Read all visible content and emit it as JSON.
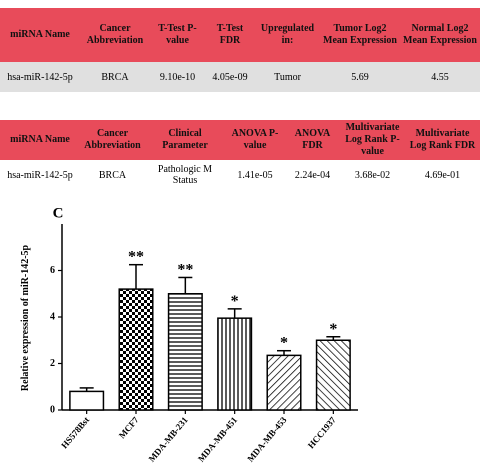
{
  "table1": {
    "headers": [
      "miRNA Name",
      "Cancer Abbreviation",
      "T-Test P-value",
      "T-Test FDR",
      "Upregulated in:",
      "Tumor Log2 Mean Expression",
      "Normal Log2 Mean Expression"
    ],
    "rows": [
      [
        "hsa-miR-142-5p",
        "BRCA",
        "9.10e-10",
        "4.05e-09",
        "Tumor",
        "5.69",
        "4.55"
      ]
    ]
  },
  "table2": {
    "headers": [
      "miRNA Name",
      "Cancer Abbreviation",
      "Clinical Parameter",
      "ANOVA P-value",
      "ANOVA FDR",
      "Multivariate Log Rank P-value",
      "Multivariate Log Rank FDR"
    ],
    "rows": [
      [
        "hsa-miR-142-5p",
        "BRCA",
        "Pathologic M Status",
        "1.41e-05",
        "2.24e-04",
        "3.68e-02",
        "4.69e-01"
      ]
    ]
  },
  "chart_data": {
    "type": "bar",
    "panel_label": "C",
    "y_label": "Relative expression of miR-142-5p",
    "categories": [
      "HS578Bst",
      "MCF7",
      "MDA-MB-231",
      "MDA-MB-451",
      "MDA-MB-453",
      "HCC1937"
    ],
    "values": [
      0.8,
      5.2,
      5.0,
      3.95,
      2.35,
      3.0
    ],
    "errors": [
      0.15,
      1.05,
      0.7,
      0.4,
      0.2,
      0.15
    ],
    "annotations": [
      null,
      "**",
      "**",
      "*",
      "*",
      "*"
    ],
    "ylim": [
      0,
      8
    ],
    "yticks": [
      0,
      2,
      4,
      6
    ],
    "color": "#000000"
  }
}
